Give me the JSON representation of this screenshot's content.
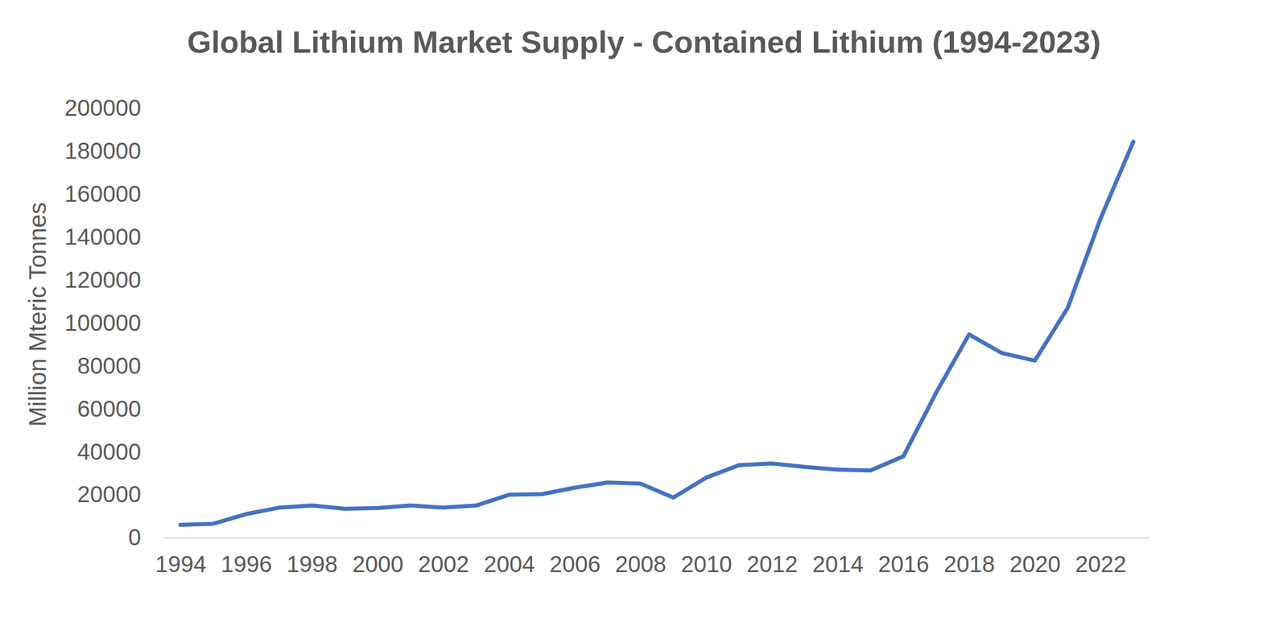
{
  "chart_data": {
    "type": "line",
    "title": "Global Lithium Market Supply - Contained Lithium (1994-2023)",
    "y_label": "Million Mteric Tonnes",
    "x": [
      1994,
      1995,
      1996,
      1997,
      1998,
      1999,
      2000,
      2001,
      2002,
      2003,
      2004,
      2005,
      2006,
      2007,
      2008,
      2009,
      2010,
      2011,
      2012,
      2013,
      2014,
      2015,
      2016,
      2017,
      2018,
      2019,
      2020,
      2021,
      2022,
      2023
    ],
    "values": [
      6000,
      6500,
      11000,
      14000,
      15000,
      13500,
      13800,
      15000,
      14000,
      15000,
      20000,
      20300,
      23300,
      25700,
      25200,
      18700,
      28000,
      33800,
      34600,
      33000,
      31700,
      31300,
      37900,
      67600,
      94700,
      86000,
      82500,
      107000,
      148600,
      184500
    ],
    "color": "#4472c4",
    "xlim": [
      1993.5,
      2023.5
    ],
    "xticks": [
      1994,
      1996,
      1998,
      2000,
      2002,
      2004,
      2006,
      2008,
      2010,
      2012,
      2014,
      2016,
      2018,
      2020,
      2022
    ],
    "ylim": [
      0,
      200000
    ],
    "yticks": [
      0,
      20000,
      40000,
      60000,
      80000,
      100000,
      120000,
      140000,
      160000,
      180000,
      200000
    ],
    "grid": false
  }
}
